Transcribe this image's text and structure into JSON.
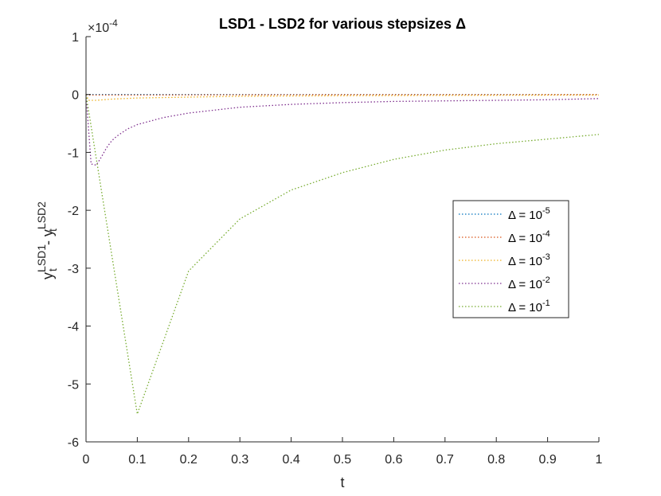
{
  "chart_data": {
    "type": "line",
    "title": "LSD1 - LSD2 for various stepsizes Δ",
    "xlabel": "t",
    "ylabel": {
      "base1": "y",
      "sup1": "LSD1",
      "sub1": "t",
      "mid": " - ",
      "base2": "y",
      "sup2": "LSD2",
      "sub2": "t"
    },
    "y_exponent": {
      "base": "×10",
      "exp": "-4"
    },
    "xlim": [
      0,
      1
    ],
    "ylim": [
      -6,
      1
    ],
    "x_ticks": [
      0,
      0.1,
      0.2,
      0.3,
      0.4,
      0.5,
      0.6,
      0.7,
      0.8,
      0.9,
      1
    ],
    "x_tick_labels": [
      "0",
      "0.1",
      "0.2",
      "0.3",
      "0.4",
      "0.5",
      "0.6",
      "0.7",
      "0.8",
      "0.9",
      "1"
    ],
    "y_ticks": [
      1,
      0,
      -1,
      -2,
      -3,
      -4,
      -5,
      -6
    ],
    "y_tick_labels": [
      "1",
      "0",
      "-1",
      "-2",
      "-3",
      "-4",
      "-5",
      "-6"
    ],
    "grid": false,
    "legend_position": "right",
    "series": [
      {
        "name": "Δ = 10^-5",
        "label_base": "Δ = 10",
        "label_exp": "-5",
        "color": "#0072bd",
        "x": [
          0,
          0.005,
          0.02,
          0.1,
          0.3,
          0.5,
          0.7,
          1.0
        ],
        "y": [
          0,
          0,
          0,
          0,
          0,
          0,
          0,
          0
        ]
      },
      {
        "name": "Δ = 10^-4",
        "label_base": "Δ = 10",
        "label_exp": "-4",
        "color": "#d95319",
        "x": [
          0,
          0.005,
          0.02,
          0.1,
          0.3,
          0.5,
          0.7,
          1.0
        ],
        "y": [
          0,
          -0.01,
          -0.01,
          -0.01,
          -0.005,
          -0.003,
          -0.002,
          -0.001
        ]
      },
      {
        "name": "Δ = 10^-3",
        "label_base": "Δ = 10",
        "label_exp": "-3",
        "color": "#edb120",
        "x": [
          0,
          0.005,
          0.02,
          0.05,
          0.1,
          0.3,
          0.5,
          0.7,
          1.0
        ],
        "y": [
          0,
          -0.1,
          -0.1,
          -0.08,
          -0.06,
          -0.03,
          -0.02,
          -0.015,
          -0.01
        ]
      },
      {
        "name": "Δ = 10^-2",
        "label_base": "Δ = 10",
        "label_exp": "-2",
        "color": "#7e2f8e",
        "x": [
          0,
          0.01,
          0.02,
          0.03,
          0.04,
          0.05,
          0.06,
          0.08,
          0.1,
          0.15,
          0.2,
          0.3,
          0.4,
          0.5,
          0.6,
          0.7,
          0.8,
          0.9,
          1.0
        ],
        "y": [
          0,
          -1.2,
          -1.22,
          -1.08,
          -0.92,
          -0.8,
          -0.72,
          -0.6,
          -0.52,
          -0.4,
          -0.32,
          -0.22,
          -0.17,
          -0.14,
          -0.12,
          -0.11,
          -0.1,
          -0.09,
          -0.07
        ]
      },
      {
        "name": "Δ = 10^-1",
        "label_base": "Δ = 10",
        "label_exp": "-1",
        "color": "#77ac30",
        "x": [
          0,
          0.1,
          0.2,
          0.3,
          0.4,
          0.5,
          0.6,
          0.7,
          0.8,
          0.9,
          1.0
        ],
        "y": [
          0,
          -5.52,
          -3.05,
          -2.15,
          -1.65,
          -1.35,
          -1.12,
          -0.96,
          -0.85,
          -0.77,
          -0.69
        ]
      }
    ]
  }
}
